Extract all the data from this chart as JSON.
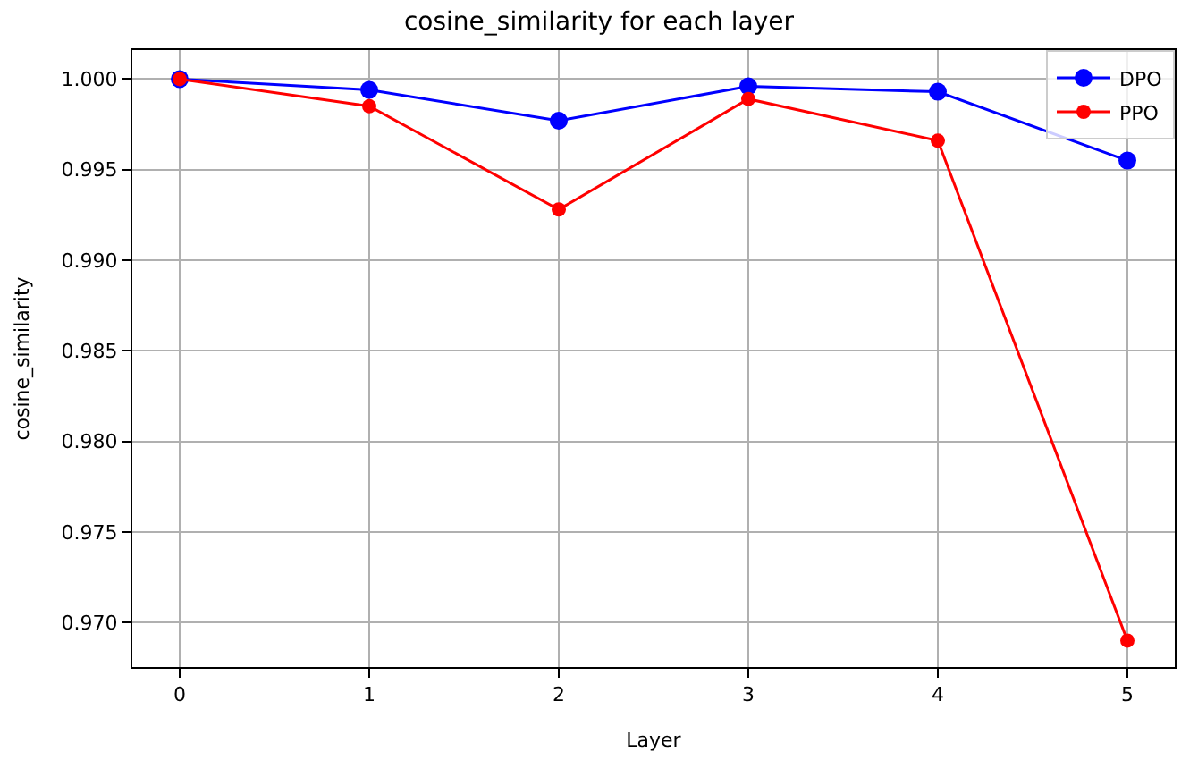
{
  "chart_data": {
    "type": "line",
    "title": "cosine_similarity for each layer",
    "xlabel": "Layer",
    "ylabel": "cosine_similarity",
    "x": [
      0,
      1,
      2,
      3,
      4,
      5
    ],
    "series": [
      {
        "name": "DPO",
        "color": "#0000ff",
        "values": [
          1.0,
          0.9994,
          0.9977,
          0.9996,
          0.9993,
          0.9955
        ]
      },
      {
        "name": "PPO",
        "color": "#ff0000",
        "values": [
          1.0,
          0.9985,
          0.9928,
          0.9989,
          0.9966,
          0.969
        ]
      }
    ],
    "xlim": [
      -0.25,
      5.25
    ],
    "ylim": [
      0.96754,
      1.0016
    ],
    "xticks": [
      0,
      1,
      2,
      3,
      4,
      5
    ],
    "yticks": [
      {
        "value": 0.97,
        "label": "0.970"
      },
      {
        "value": 0.975,
        "label": "0.975"
      },
      {
        "value": 0.98,
        "label": "0.980"
      },
      {
        "value": 0.985,
        "label": "0.985"
      },
      {
        "value": 0.99,
        "label": "0.990"
      },
      {
        "value": 0.995,
        "label": "0.995"
      },
      {
        "value": 1.0,
        "label": "1.000"
      }
    ],
    "grid": true,
    "legend": "top right",
    "marker": "circle",
    "line_style": "solid"
  }
}
